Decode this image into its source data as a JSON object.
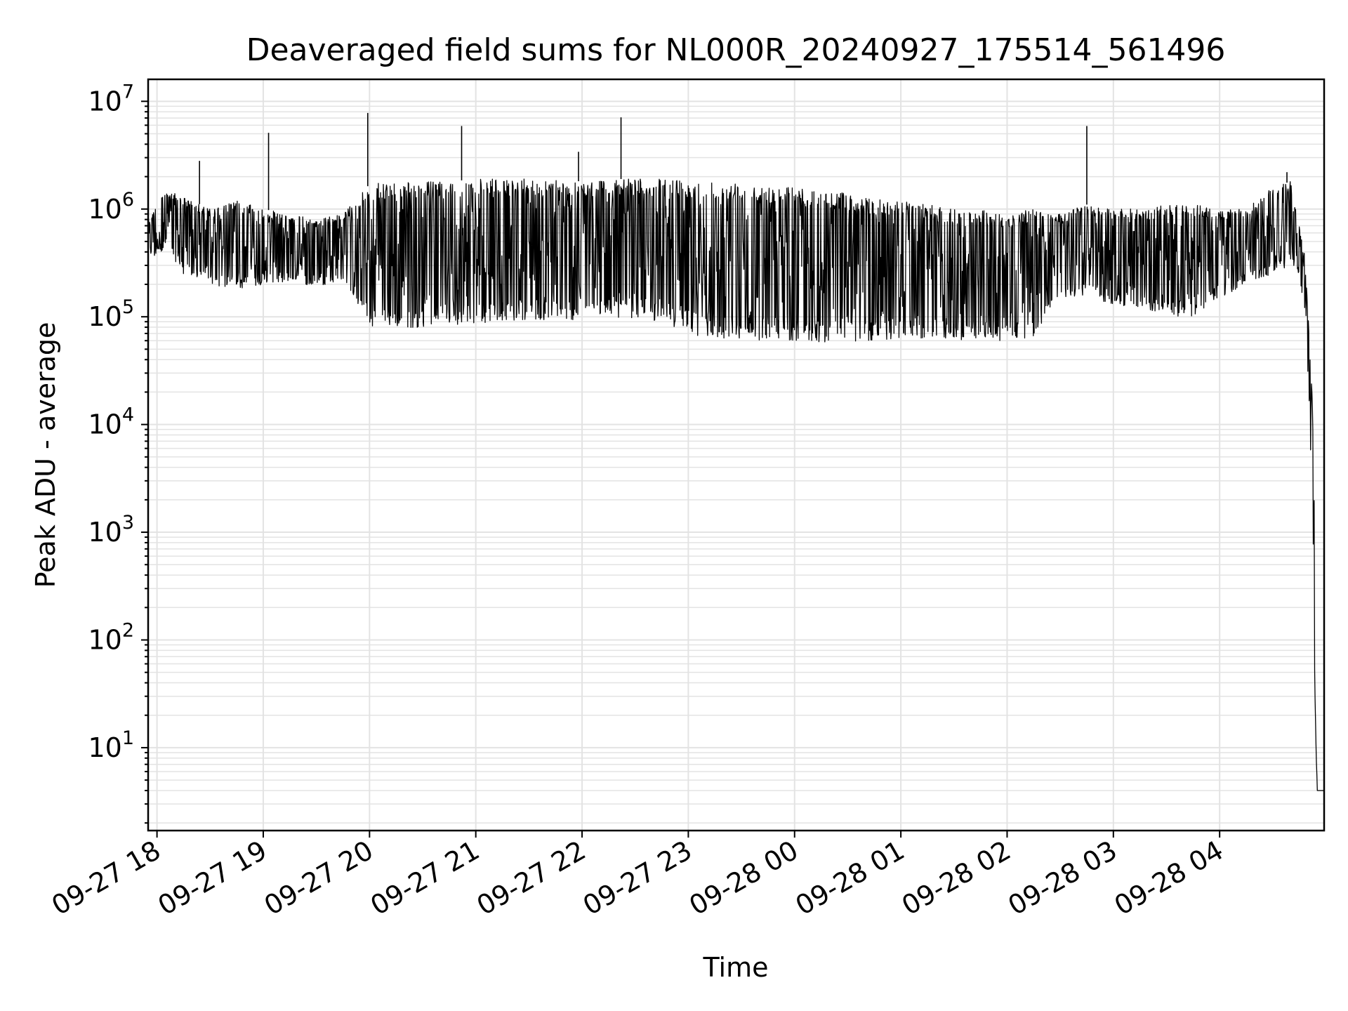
{
  "chart_data": {
    "type": "line",
    "title": "Deaveraged field sums for NL000R_20240927_175514_561496",
    "xlabel": "Time",
    "ylabel": "Peak ADU - average",
    "yscale": "log",
    "ylim": [
      1.7,
      16000000
    ],
    "xlim": [
      "09-27 17:55",
      "09-28 04:59"
    ],
    "grid": true,
    "line_color": "#000000",
    "x_ticks": [
      "09-27 18",
      "09-27 19",
      "09-27 20",
      "09-27 21",
      "09-27 22",
      "09-27 23",
      "09-28 00",
      "09-28 01",
      "09-28 02",
      "09-28 03",
      "09-28 04"
    ],
    "y_ticks": [
      {
        "base": "10",
        "exp": "1"
      },
      {
        "base": "10",
        "exp": "2"
      },
      {
        "base": "10",
        "exp": "3"
      },
      {
        "base": "10",
        "exp": "4"
      },
      {
        "base": "10",
        "exp": "5"
      },
      {
        "base": "10",
        "exp": "6"
      },
      {
        "base": "10",
        "exp": "7"
      }
    ],
    "series": [
      {
        "x": [
          "09-27 17:55",
          "09-27 18:05",
          "09-27 18:15",
          "09-27 18:30",
          "09-27 18:45",
          "09-27 19:00",
          "09-27 19:15",
          "09-27 19:30",
          "09-27 19:45",
          "09-27 20:00",
          "09-27 20:15",
          "09-27 20:30",
          "09-27 20:45",
          "09-27 21:00",
          "09-27 21:15",
          "09-27 21:30",
          "09-27 21:45",
          "09-27 22:00",
          "09-27 22:15",
          "09-27 22:30",
          "09-27 22:45",
          "09-27 23:00",
          "09-27 23:15",
          "09-27 23:30",
          "09-27 23:45",
          "09-28 00:00",
          "09-28 00:15",
          "09-28 00:30",
          "09-28 00:45",
          "09-28 01:00",
          "09-28 01:15",
          "09-28 01:30",
          "09-28 01:45",
          "09-28 02:00",
          "09-28 02:15",
          "09-28 02:30",
          "09-28 02:45",
          "09-28 03:00",
          "09-28 03:15",
          "09-28 03:30",
          "09-28 03:45",
          "09-28 04:00",
          "09-28 04:15",
          "09-28 04:30",
          "09-28 04:40",
          "09-28 04:45",
          "09-28 04:48",
          "09-28 04:51",
          "09-28 04:53",
          "09-28 04:55",
          "09-28 04:59"
        ],
        "upper": [
          800000,
          1500000,
          1300000,
          1000000,
          1200000,
          1000000,
          900000,
          800000,
          900000,
          1700000,
          1800000,
          1800000,
          1800000,
          1900000,
          1900000,
          1900000,
          1900000,
          1800000,
          1900000,
          1900000,
          1900000,
          1900000,
          1800000,
          1800000,
          1700000,
          1600000,
          1500000,
          1400000,
          1300000,
          1200000,
          1100000,
          1000000,
          1000000,
          900000,
          1000000,
          900000,
          1100000,
          1000000,
          1000000,
          1100000,
          1100000,
          1000000,
          1000000,
          1600000,
          1800000,
          700000,
          400000,
          50000,
          10000,
          4,
          4
        ],
        "lower": [
          300000,
          450000,
          250000,
          200000,
          180000,
          200000,
          210000,
          190000,
          220000,
          80000,
          75000,
          80000,
          85000,
          85000,
          90000,
          95000,
          90000,
          95000,
          100000,
          95000,
          90000,
          70000,
          60000,
          60000,
          60000,
          60000,
          58000,
          58000,
          60000,
          62000,
          62000,
          60000,
          60000,
          60000,
          65000,
          150000,
          150000,
          130000,
          120000,
          100000,
          100000,
          150000,
          200000,
          250000,
          300000,
          250000,
          100000,
          10000,
          100,
          4,
          4
        ]
      }
    ],
    "spikes": [
      {
        "x": "09-27 18:24",
        "y": 2800000
      },
      {
        "x": "09-27 19:03",
        "y": 5100000
      },
      {
        "x": "09-27 19:59",
        "y": 7800000
      },
      {
        "x": "09-27 20:52",
        "y": 5900000
      },
      {
        "x": "09-27 21:58",
        "y": 3400000
      },
      {
        "x": "09-27 22:22",
        "y": 7100000
      },
      {
        "x": "09-28 02:45",
        "y": 5900000
      },
      {
        "x": "09-28 04:38",
        "y": 2200000
      }
    ]
  }
}
